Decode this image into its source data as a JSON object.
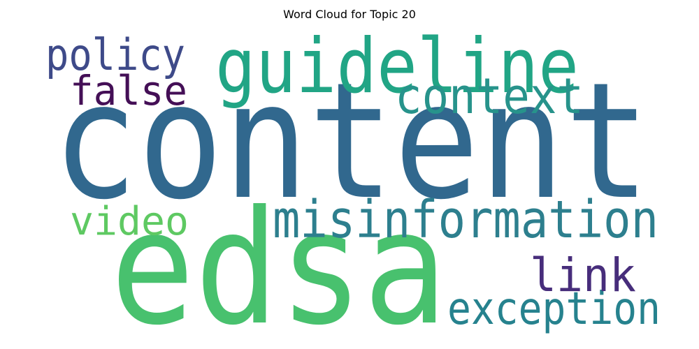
{
  "chart_data": {
    "type": "wordcloud",
    "title": "Word Cloud for Topic 20",
    "words": [
      {
        "text": "content",
        "color": "#31688e"
      },
      {
        "text": "edsa",
        "color": "#48c16e"
      },
      {
        "text": "guideline",
        "color": "#21a585"
      },
      {
        "text": "misinformation",
        "color": "#2d7f8e"
      },
      {
        "text": "context",
        "color": "#27938b"
      },
      {
        "text": "exception",
        "color": "#26828e"
      },
      {
        "text": "policy",
        "color": "#3e4a89"
      },
      {
        "text": "false",
        "color": "#440f56"
      },
      {
        "text": "video",
        "color": "#5ec962"
      },
      {
        "text": "link",
        "color": "#472d7b"
      }
    ]
  }
}
